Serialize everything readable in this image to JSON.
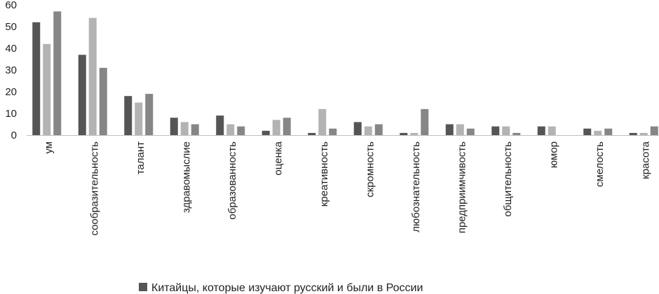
{
  "chart_data": {
    "type": "bar",
    "title": "",
    "xlabel": "",
    "ylabel": "",
    "ylim": [
      0,
      60
    ],
    "yticks": [
      0,
      10,
      20,
      30,
      40,
      50,
      60
    ],
    "grid": false,
    "legend_position": "bottom",
    "categories": [
      "ум",
      "сообразительность",
      "талант",
      "здравомыслие",
      "образованность",
      "оценка",
      "креативность",
      "скромность",
      "любознательность",
      "предприимчивость",
      "общительность",
      "юмор",
      "смелость",
      "красота"
    ],
    "series": [
      {
        "name": "Китайцы, которые изучают русский и были в России",
        "color": "#555555",
        "values": [
          52,
          37,
          18,
          8,
          9,
          2,
          1,
          6,
          1,
          5,
          4,
          4,
          3,
          1
        ]
      },
      {
        "name": "",
        "color": "#b3b3b3",
        "values": [
          42,
          54,
          15,
          6,
          5,
          7,
          12,
          4,
          1,
          5,
          4,
          4,
          2,
          1
        ]
      },
      {
        "name": "",
        "color": "#868686",
        "values": [
          57,
          31,
          19,
          5,
          4,
          8,
          3,
          5,
          12,
          3,
          1,
          0,
          3,
          4
        ]
      }
    ]
  }
}
